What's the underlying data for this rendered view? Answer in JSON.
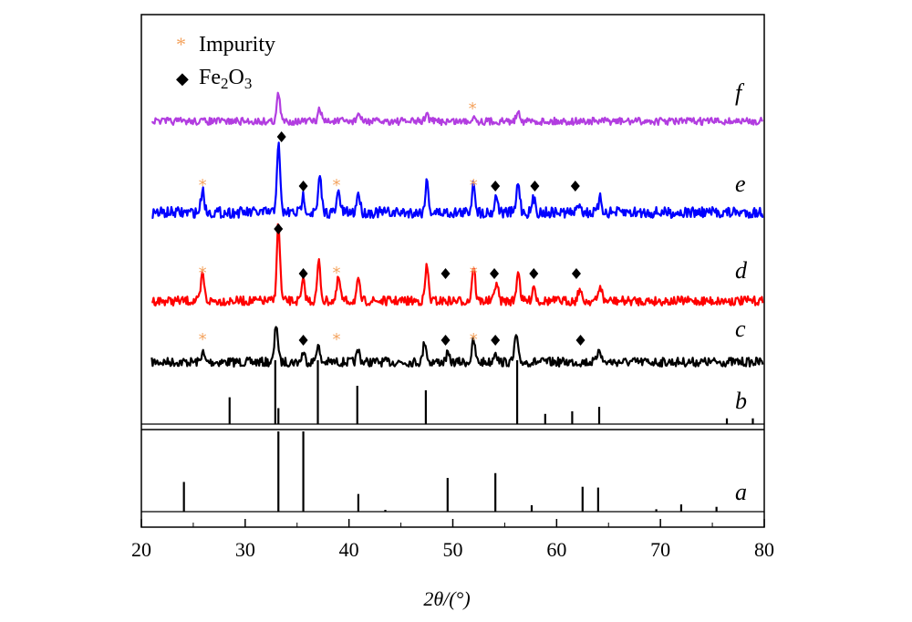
{
  "chart_data": {
    "type": "line",
    "title": "",
    "xlabel": "2θ/(°)",
    "ylabel": "",
    "xlim": [
      20,
      80
    ],
    "xticks": [
      20,
      30,
      40,
      50,
      60,
      70,
      80
    ],
    "legend": {
      "placement": "top-left",
      "entries": [
        {
          "name": "Impurity",
          "marker": "*",
          "color": "#f4a460"
        },
        {
          "name": "Fe2O3",
          "formula_base": "Fe",
          "sub1": "2",
          "mid": "O",
          "sub2": "3",
          "marker": "◆",
          "color": "#000000"
        }
      ]
    },
    "reference_patterns": [
      {
        "label": "a",
        "color": "#000000",
        "peaks": [
          [
            24.1,
            0.37
          ],
          [
            33.2,
            1.0
          ],
          [
            35.6,
            1.0
          ],
          [
            40.9,
            0.22
          ],
          [
            43.5,
            0.02
          ],
          [
            49.5,
            0.42
          ],
          [
            54.1,
            0.48
          ],
          [
            57.6,
            0.08
          ],
          [
            62.5,
            0.31
          ],
          [
            64.0,
            0.3
          ],
          [
            69.6,
            0.03
          ],
          [
            72.0,
            0.09
          ],
          [
            75.4,
            0.06
          ]
        ]
      },
      {
        "label": "b",
        "color": "#000000",
        "peaks": [
          [
            28.5,
            0.42
          ],
          [
            32.9,
            1.0
          ],
          [
            33.2,
            0.25
          ],
          [
            37.0,
            1.0
          ],
          [
            40.8,
            0.6
          ],
          [
            47.4,
            0.53
          ],
          [
            56.2,
            1.0
          ],
          [
            58.9,
            0.16
          ],
          [
            61.5,
            0.2
          ],
          [
            64.1,
            0.27
          ],
          [
            76.4,
            0.09
          ],
          [
            78.9,
            0.09
          ]
        ]
      }
    ],
    "series": [
      {
        "name": "c",
        "color": "#000000",
        "peaks": [
          [
            25.9,
            0.25
          ],
          [
            33.0,
            1.0
          ],
          [
            35.6,
            0.25
          ],
          [
            37.0,
            0.45
          ],
          [
            40.9,
            0.3
          ],
          [
            47.3,
            0.55
          ],
          [
            49.5,
            0.2
          ],
          [
            52.0,
            0.55
          ],
          [
            54.1,
            0.3
          ],
          [
            56.1,
            0.7
          ],
          [
            64.1,
            0.4
          ]
        ],
        "markers": [
          {
            "type": "impurity",
            "x": 25.9
          },
          {
            "type": "fe2o3",
            "x": 35.6
          },
          {
            "type": "impurity",
            "x": 38.8
          },
          {
            "type": "fe2o3",
            "x": 49.3
          },
          {
            "type": "impurity",
            "x": 52.0
          },
          {
            "type": "fe2o3",
            "x": 54.1
          },
          {
            "type": "fe2o3",
            "x": 62.3
          }
        ]
      },
      {
        "name": "d",
        "color": "#ff0000",
        "peaks": [
          [
            25.9,
            0.35
          ],
          [
            33.2,
            1.0
          ],
          [
            35.6,
            0.25
          ],
          [
            37.1,
            0.5
          ],
          [
            39.0,
            0.3
          ],
          [
            40.9,
            0.25
          ],
          [
            47.5,
            0.45
          ],
          [
            52.0,
            0.45
          ],
          [
            54.2,
            0.25
          ],
          [
            56.3,
            0.4
          ],
          [
            57.8,
            0.2
          ],
          [
            62.2,
            0.15
          ],
          [
            64.2,
            0.2
          ]
        ],
        "markers": [
          {
            "type": "impurity",
            "x": 25.9
          },
          {
            "type": "fe2o3",
            "x": 33.2
          },
          {
            "type": "fe2o3",
            "x": 35.6
          },
          {
            "type": "impurity",
            "x": 38.8
          },
          {
            "type": "fe2o3",
            "x": 49.3
          },
          {
            "type": "impurity",
            "x": 52.0
          },
          {
            "type": "fe2o3",
            "x": 54.0
          },
          {
            "type": "fe2o3",
            "x": 57.8
          },
          {
            "type": "fe2o3",
            "x": 61.9
          }
        ]
      },
      {
        "name": "e",
        "color": "#0000ff",
        "peaks": [
          [
            25.9,
            0.35
          ],
          [
            33.2,
            1.0
          ],
          [
            35.6,
            0.25
          ],
          [
            37.2,
            0.5
          ],
          [
            39.0,
            0.3
          ],
          [
            40.9,
            0.3
          ],
          [
            47.5,
            0.45
          ],
          [
            52.0,
            0.45
          ],
          [
            54.2,
            0.25
          ],
          [
            56.3,
            0.45
          ],
          [
            57.8,
            0.2
          ],
          [
            62.2,
            0.15
          ],
          [
            64.2,
            0.2
          ]
        ],
        "markers": [
          {
            "type": "impurity",
            "x": 25.9
          },
          {
            "type": "fe2o3",
            "x": 33.5
          },
          {
            "type": "fe2o3",
            "x": 35.6
          },
          {
            "type": "impurity",
            "x": 38.8
          },
          {
            "type": "impurity",
            "x": 52.0
          },
          {
            "type": "fe2o3",
            "x": 54.1
          },
          {
            "type": "fe2o3",
            "x": 57.9
          },
          {
            "type": "fe2o3",
            "x": 61.8
          }
        ]
      },
      {
        "name": "f",
        "color": "#b23de0",
        "peaks": [
          [
            33.2,
            1.0
          ],
          [
            37.2,
            0.45
          ],
          [
            40.9,
            0.3
          ],
          [
            47.5,
            0.3
          ],
          [
            52.0,
            0.2
          ],
          [
            56.3,
            0.45
          ]
        ],
        "markers": [
          {
            "type": "impurity",
            "x": 51.9
          }
        ]
      }
    ]
  }
}
